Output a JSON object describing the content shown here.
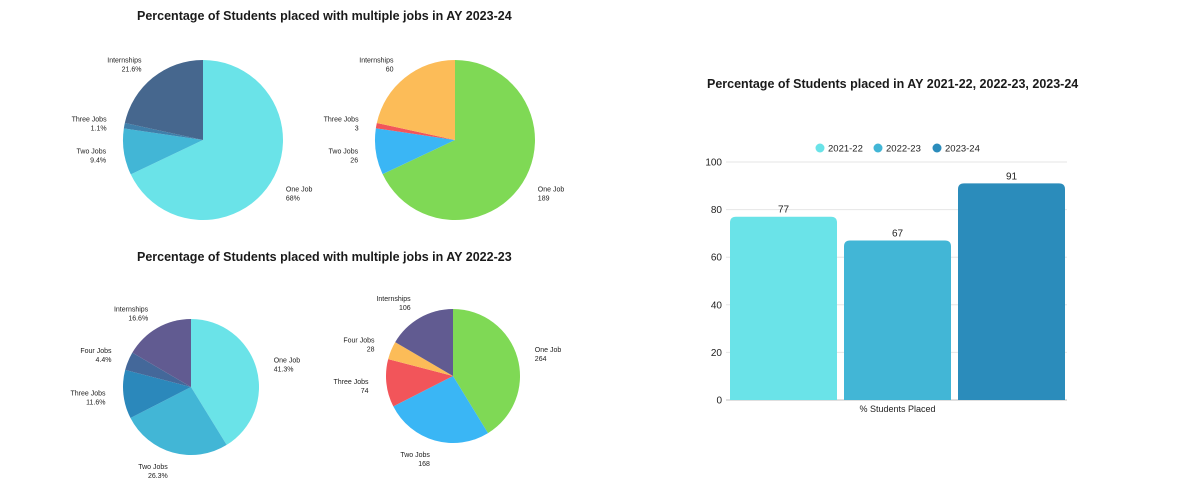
{
  "chart_data": [
    {
      "type": "pie",
      "title": "Percentage of Students placed with multiple jobs in AY 2023-24",
      "slices": [
        {
          "label": "One Job",
          "value": 68,
          "display": "68%",
          "color": "#6ae3e8"
        },
        {
          "label": "Two Jobs",
          "value": 9.4,
          "display": "9.4%",
          "color": "#42b6d6"
        },
        {
          "label": "Three Jobs",
          "value": 1.1,
          "display": "1.1%",
          "color": "#3f7faa"
        },
        {
          "label": "Internships",
          "value": 21.6,
          "display": "21.6%",
          "color": "#46678e"
        }
      ]
    },
    {
      "type": "pie",
      "slices": [
        {
          "label": "One Job",
          "value": 189,
          "display": "189",
          "color": "#7fd955"
        },
        {
          "label": "Two Jobs",
          "value": 26,
          "display": "26",
          "color": "#3ab6f5"
        },
        {
          "label": "Three Jobs",
          "value": 3,
          "display": "3",
          "color": "#f2555a"
        },
        {
          "label": "Internships",
          "value": 60,
          "display": "60",
          "color": "#fcbc58"
        }
      ]
    },
    {
      "type": "pie",
      "title": "Percentage of Students placed with multiple jobs in AY 2022-23",
      "slices": [
        {
          "label": "One Job",
          "value": 41.3,
          "display": "41.3%",
          "color": "#6ae3e8"
        },
        {
          "label": "Two Jobs",
          "value": 26.3,
          "display": "26.3%",
          "color": "#42b6d6"
        },
        {
          "label": "Three Jobs",
          "value": 11.6,
          "display": "11.6%",
          "color": "#2b88bb"
        },
        {
          "label": "Four Jobs",
          "value": 4.4,
          "display": "4.4%",
          "color": "#44689a"
        },
        {
          "label": "Internships",
          "value": 16.6,
          "display": "16.6%",
          "color": "#615b91"
        }
      ]
    },
    {
      "type": "pie",
      "slices": [
        {
          "label": "One Job",
          "value": 264,
          "display": "264",
          "color": "#7fd955"
        },
        {
          "label": "Two Jobs",
          "value": 168,
          "display": "168",
          "color": "#3ab6f5"
        },
        {
          "label": "Three Jobs",
          "value": 74,
          "display": "74",
          "color": "#f2555a"
        },
        {
          "label": "Four Jobs",
          "value": 28,
          "display": "28",
          "color": "#fcbc58"
        },
        {
          "label": "Internships",
          "value": 106,
          "display": "106",
          "color": "#615b91"
        }
      ]
    },
    {
      "type": "bar",
      "title": "Percentage of Students placed in AY 2021-22, 2022-23, 2023-24",
      "categories": [
        "% Students Placed"
      ],
      "series": [
        {
          "name": "2021-22",
          "values": [
            77
          ],
          "color": "#6ae3e8"
        },
        {
          "name": "2022-23",
          "values": [
            67
          ],
          "color": "#42b6d6"
        },
        {
          "name": "2023-24",
          "values": [
            91
          ],
          "color": "#2b8cbb"
        }
      ],
      "ylim": [
        0,
        100
      ],
      "yticks": [
        0,
        20,
        40,
        60,
        80,
        100
      ],
      "grid": true,
      "legend": "top"
    }
  ]
}
